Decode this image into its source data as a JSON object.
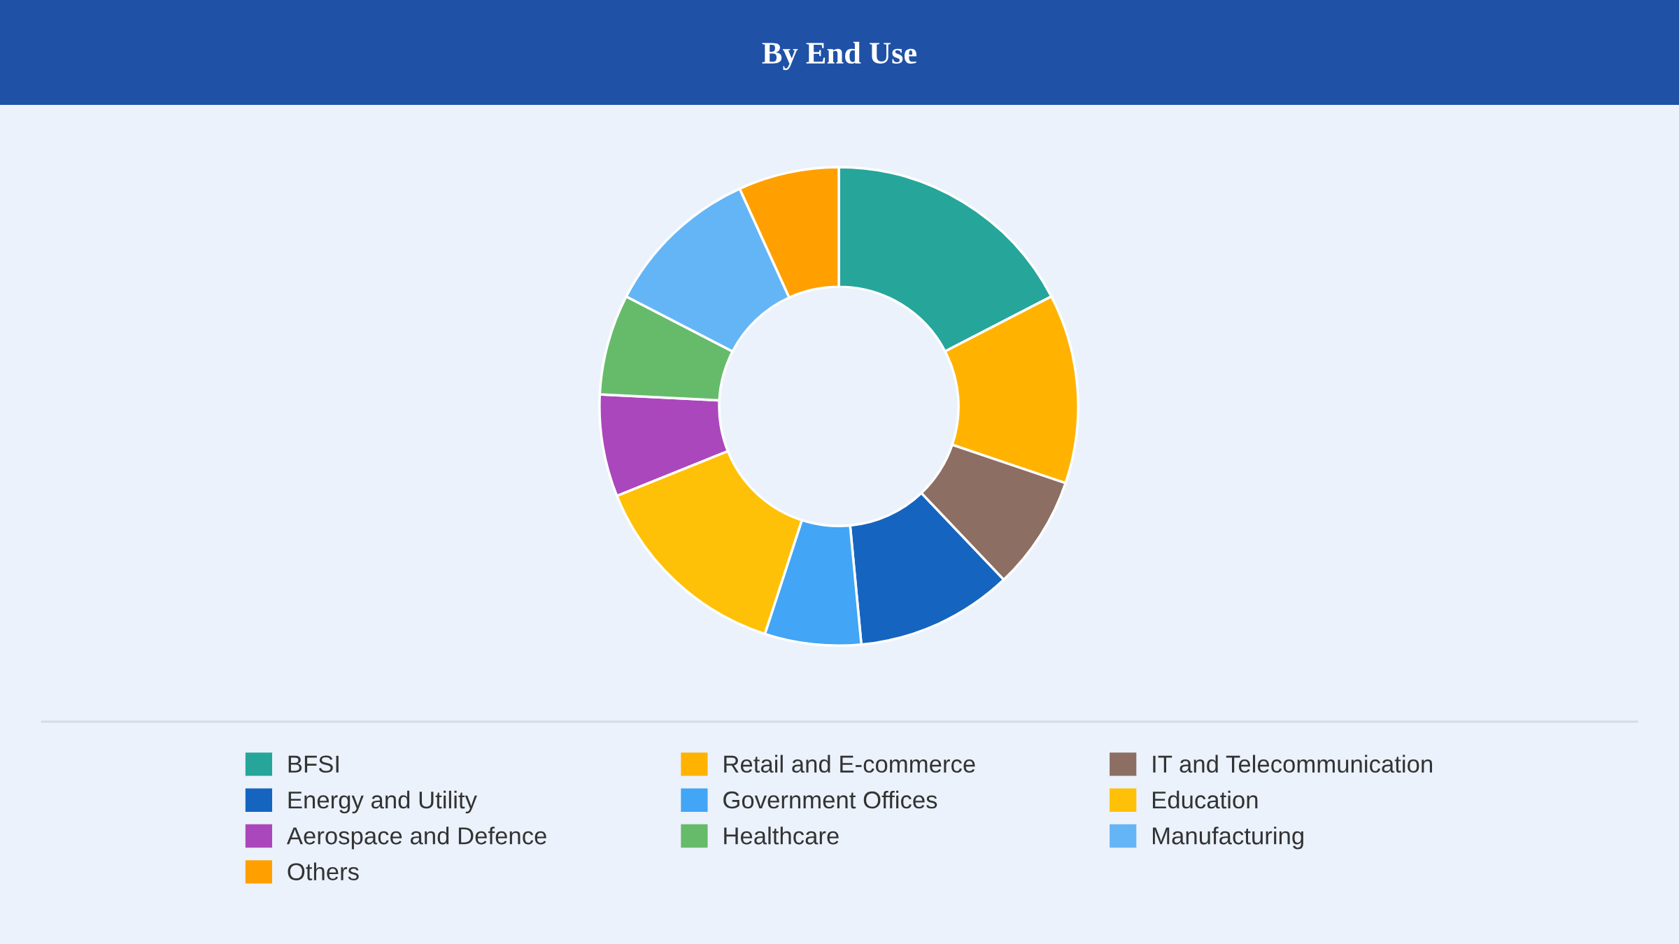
{
  "chart_data": {
    "type": "donut",
    "title": "By End Use",
    "categories": [
      "BFSI",
      "Retail and E-commerce",
      "IT and Telecommunication",
      "Energy and Utility",
      "Government Offices",
      "Education",
      "Aerospace and Defence",
      "Healthcare",
      "Manufacturing",
      "Others"
    ],
    "values": [
      17.4,
      12.8,
      7.7,
      10.6,
      6.5,
      13.9,
      6.9,
      6.8,
      10.6,
      6.8
    ],
    "colors": [
      "#26a69a",
      "#ffb300",
      "#8d6e63",
      "#1565c0",
      "#42a5f5",
      "#ffc107",
      "#ab47bc",
      "#66bb6a",
      "#64b5f6",
      "#ffa000"
    ],
    "legend": "bottom"
  }
}
